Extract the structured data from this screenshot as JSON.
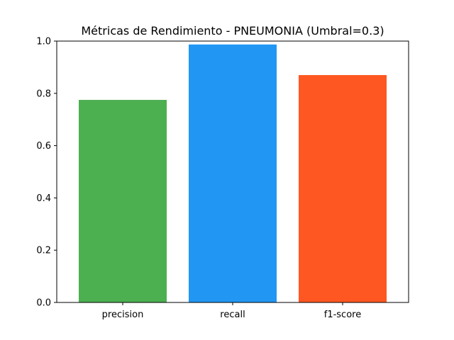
{
  "chart_data": {
    "type": "bar",
    "title": "Métricas de Rendimiento - PNEUMONIA (Umbral=0.3)",
    "xlabel": "",
    "ylabel": "",
    "categories": [
      "precision",
      "recall",
      "f1-score"
    ],
    "values": [
      0.775,
      0.987,
      0.87
    ],
    "colors": [
      "#4caf50",
      "#2196f3",
      "#ff5722"
    ],
    "ylim": [
      0,
      1
    ],
    "yticks": [
      0.0,
      0.2,
      0.4,
      0.6,
      0.8,
      1.0
    ],
    "ytick_labels": [
      "0.0",
      "0.2",
      "0.4",
      "0.6",
      "0.8",
      "1.0"
    ],
    "grid": false,
    "legend": "none"
  }
}
